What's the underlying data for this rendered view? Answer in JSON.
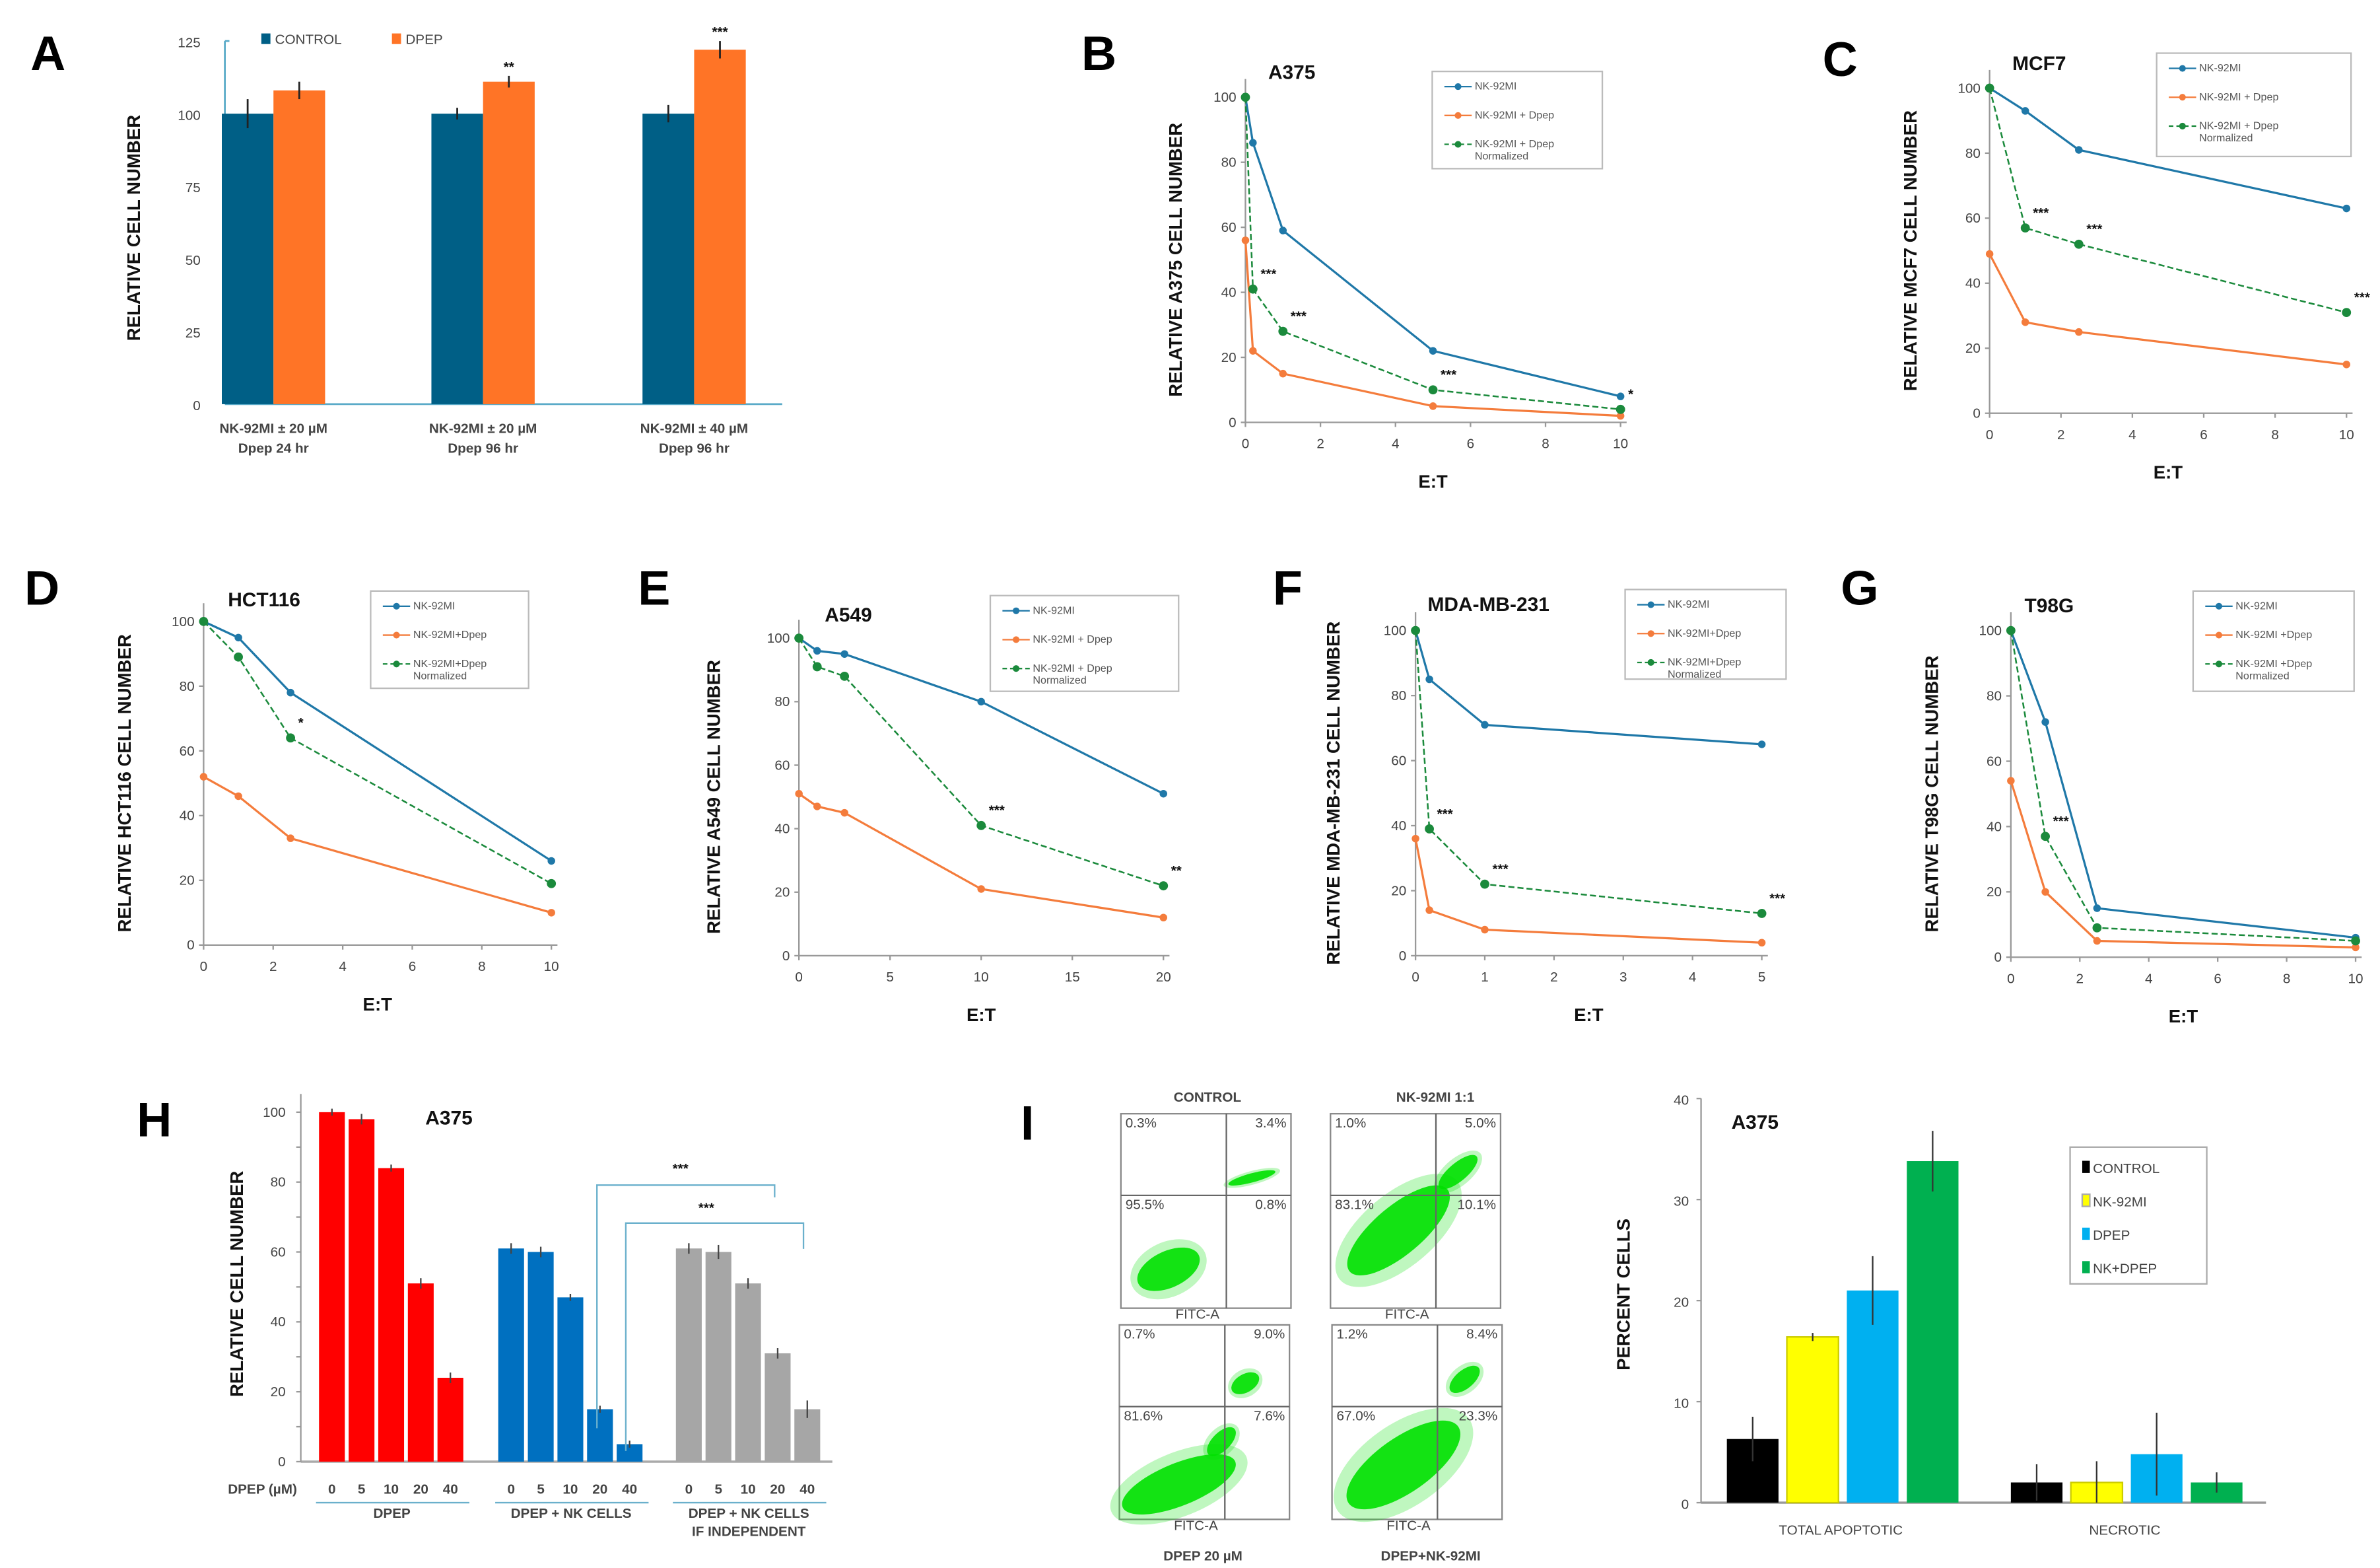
{
  "colors": {
    "nk": "#1f78a8",
    "dpep": "#f47c3c",
    "norm": "#1b8a3c",
    "control_A": "#005f86",
    "dpep_A": "#ff7426",
    "h_red": "#ff0000",
    "h_blue": "#0070c0",
    "h_gray": "#a6a6a6",
    "i_black": "#000000",
    "i_yellow": "#ffff00",
    "i_cyan": "#00b0f0",
    "i_green": "#00b050",
    "flow_green": "#00e000"
  },
  "chart_data": [
    {
      "panel": "A",
      "type": "bar",
      "categories": [
        [
          "NK-92MI ± 20 µM",
          "Dpep 24 hr"
        ],
        [
          "NK-92MI ± 20 µM",
          "Dpep 96 hr"
        ],
        [
          "NK-92MI ± 40 µM",
          "Dpep 96 hr"
        ]
      ],
      "series": [
        {
          "name": "CONTROL",
          "values": [
            100,
            100,
            100
          ],
          "errors": [
            5,
            2,
            3
          ]
        },
        {
          "name": "DPEP",
          "values": [
            108,
            111,
            122
          ],
          "errors": [
            3,
            2,
            3
          ]
        }
      ],
      "stars": [
        "",
        "**",
        "***"
      ],
      "ylabel": "RELATIVE CELL NUMBER",
      "ylim": [
        0,
        125
      ],
      "yticks": [
        0,
        25,
        50,
        75,
        100,
        125
      ],
      "legend": "top"
    },
    {
      "panel": "B",
      "type": "line",
      "title": "A375",
      "ylabel": "RELATIVE A375 CELL NUMBER",
      "xlabel": "E:T",
      "xlim": [
        0,
        10
      ],
      "ylim": [
        0,
        100
      ],
      "xticks": [
        0,
        2,
        4,
        6,
        8,
        10
      ],
      "yticks": [
        0,
        20,
        40,
        60,
        80,
        100
      ],
      "x": [
        0,
        0.2,
        1,
        5,
        10
      ],
      "series": [
        {
          "values": [
            100,
            86,
            59,
            22,
            8
          ]
        },
        {
          "values": [
            56,
            22,
            15,
            5,
            2
          ]
        },
        {
          "values": [
            100,
            41,
            28,
            10,
            4
          ]
        }
      ],
      "stars": [
        "",
        "***",
        "***",
        "***",
        "*"
      ],
      "legend": [
        [
          "NK-92MI"
        ],
        [
          "NK-92MI + Dpep"
        ],
        [
          "NK-92MI + Dpep",
          "Normalized"
        ]
      ]
    },
    {
      "panel": "C",
      "type": "line",
      "title": "MCF7",
      "ylabel": "RELATIVE MCF7 CELL NUMBER",
      "xlabel": "E:T",
      "xlim": [
        0,
        10
      ],
      "ylim": [
        0,
        100
      ],
      "xticks": [
        0,
        2,
        4,
        6,
        8,
        10
      ],
      "yticks": [
        0,
        20,
        40,
        60,
        80,
        100
      ],
      "x": [
        0,
        1,
        2.5,
        10
      ],
      "series": [
        {
          "values": [
            100,
            93,
            81,
            63
          ]
        },
        {
          "values": [
            49,
            28,
            25,
            15
          ]
        },
        {
          "values": [
            100,
            57,
            52,
            31
          ]
        }
      ],
      "stars": [
        "",
        "***",
        "***",
        "***"
      ],
      "legend": [
        [
          "NK-92MI"
        ],
        [
          "NK-92MI + Dpep"
        ],
        [
          "NK-92MI + Dpep",
          "Normalized"
        ]
      ]
    },
    {
      "panel": "D",
      "type": "line",
      "title": "HCT116",
      "ylabel": "RELATIVE HCT116 CELL NUMBER",
      "xlabel": "E:T",
      "xlim": [
        0,
        10
      ],
      "ylim": [
        0,
        100
      ],
      "xticks": [
        0,
        2,
        4,
        6,
        8,
        10
      ],
      "yticks": [
        0,
        20,
        40,
        60,
        80,
        100
      ],
      "x": [
        0,
        1,
        2.5,
        10
      ],
      "series": [
        {
          "values": [
            100,
            95,
            78,
            26
          ]
        },
        {
          "values": [
            52,
            46,
            33,
            10
          ]
        },
        {
          "values": [
            100,
            89,
            64,
            19
          ]
        }
      ],
      "stars": [
        "",
        "",
        "*",
        ""
      ],
      "legend": [
        [
          "NK-92MI"
        ],
        [
          "NK-92MI+Dpep"
        ],
        [
          "NK-92MI+Dpep",
          "Normalized"
        ]
      ]
    },
    {
      "panel": "E",
      "type": "line",
      "title": "A549",
      "ylabel": "RELATIVE A549 CELL NUMBER",
      "xlabel": "E:T",
      "xlim": [
        0,
        20
      ],
      "ylim": [
        0,
        100
      ],
      "xticks": [
        0,
        5,
        10,
        15,
        20
      ],
      "yticks": [
        0,
        20,
        40,
        60,
        80,
        100
      ],
      "x": [
        0,
        1,
        2.5,
        10,
        20
      ],
      "series": [
        {
          "values": [
            100,
            96,
            95,
            80,
            51
          ]
        },
        {
          "values": [
            51,
            47,
            45,
            21,
            12
          ]
        },
        {
          "values": [
            100,
            91,
            88,
            41,
            22
          ]
        }
      ],
      "stars": [
        "",
        "",
        "",
        "***",
        "**"
      ],
      "legend": [
        [
          "NK-92MI"
        ],
        [
          "NK-92MI + Dpep"
        ],
        [
          "NK-92MI + Dpep",
          "Normalized"
        ]
      ]
    },
    {
      "panel": "F",
      "type": "line",
      "title": "MDA-MB-231",
      "ylabel": "RELATIVE MDA-MB-231 CELL NUMBER",
      "xlabel": "E:T",
      "xlim": [
        0,
        5
      ],
      "ylim": [
        0,
        100
      ],
      "xticks": [
        0,
        1,
        2,
        3,
        4,
        5
      ],
      "yticks": [
        0,
        20,
        40,
        60,
        80,
        100
      ],
      "x": [
        0,
        0.2,
        1,
        5
      ],
      "series": [
        {
          "values": [
            100,
            85,
            71,
            65
          ]
        },
        {
          "values": [
            36,
            14,
            8,
            4
          ]
        },
        {
          "values": [
            100,
            39,
            22,
            13
          ]
        }
      ],
      "stars": [
        "",
        "***",
        "***",
        "***"
      ],
      "legend": [
        [
          "NK-92MI"
        ],
        [
          "NK-92MI+Dpep"
        ],
        [
          "NK-92MI+Dpep",
          "Normalized"
        ]
      ]
    },
    {
      "panel": "G",
      "type": "line",
      "title": "T98G",
      "ylabel": "RELATIVE T98G CELL NUMBER",
      "xlabel": "E:T",
      "xlim": [
        0,
        10
      ],
      "ylim": [
        0,
        100
      ],
      "xticks": [
        0,
        2,
        4,
        6,
        8,
        10
      ],
      "yticks": [
        0,
        20,
        40,
        60,
        80,
        100
      ],
      "x": [
        0,
        1,
        2.5,
        10
      ],
      "series": [
        {
          "values": [
            100,
            72,
            15,
            6
          ]
        },
        {
          "values": [
            54,
            20,
            5,
            3
          ]
        },
        {
          "values": [
            100,
            37,
            9,
            5
          ]
        }
      ],
      "stars": [
        "",
        "***",
        "",
        ""
      ],
      "legend": [
        [
          "NK-92MI"
        ],
        [
          "NK-92MI +Dpep"
        ],
        [
          "NK-92MI +Dpep",
          "Normalized"
        ]
      ]
    },
    {
      "panel": "H",
      "type": "bar",
      "title": "A375",
      "ylabel": "RELATIVE CELL NUMBER",
      "ylim": [
        0,
        100
      ],
      "yticks": [
        0,
        20,
        40,
        60,
        80,
        100
      ],
      "dose_label": "DPEP (µM)",
      "doses": [
        "0",
        "5",
        "10",
        "20",
        "40"
      ],
      "groups": [
        {
          "label": [
            "DPEP"
          ],
          "values": [
            100,
            98,
            84,
            51,
            24
          ],
          "errors": [
            1,
            1.5,
            1,
            1.5,
            1.5
          ]
        },
        {
          "label": [
            "DPEP + NK CELLS"
          ],
          "values": [
            61,
            60,
            47,
            15,
            5
          ],
          "errors": [
            1.5,
            1.5,
            1,
            1,
            1
          ]
        },
        {
          "label": [
            "DPEP + NK CELLS",
            "IF INDEPENDENT"
          ],
          "values": [
            61,
            60,
            51,
            31,
            15
          ],
          "errors": [
            1.5,
            2,
            1.5,
            1.5,
            2.5
          ]
        }
      ],
      "brackets": [
        "***",
        "***"
      ]
    },
    {
      "panel": "I",
      "type": "bar",
      "title": "A375",
      "ylabel": "PERCENT CELLS",
      "ylim": [
        0,
        40
      ],
      "yticks": [
        0,
        10,
        20,
        30,
        40
      ],
      "categories": [
        "TOTAL APOPTOTIC",
        "NECROTIC"
      ],
      "series": [
        {
          "name": "CONTROL",
          "values": [
            6.3,
            2.0
          ],
          "errors": [
            2.2,
            1.8
          ]
        },
        {
          "name": "NK-92MI",
          "values": [
            16.4,
            2.0
          ],
          "errors": [
            0.4,
            2.1
          ]
        },
        {
          "name": "DPEP",
          "values": [
            21.0,
            4.8
          ],
          "errors": [
            3.4,
            4.1
          ]
        },
        {
          "name": "NK+DPEP",
          "values": [
            33.8,
            2.0
          ],
          "errors": [
            3.0,
            1.0
          ]
        }
      ],
      "legend": "right"
    }
  ],
  "flow": {
    "x_axis_label": "FITC-A",
    "panels": [
      {
        "title": "CONTROL",
        "UL": "0.3%",
        "UR": "3.4%",
        "LL": "95.5%",
        "LR": "0.8%"
      },
      {
        "title": "NK-92MI  1:1",
        "UL": "1.0%",
        "UR": "5.0%",
        "LL": "83.1%",
        "LR": "10.1%"
      },
      {
        "title": "DPEP 20 µM",
        "UL": "0.7%",
        "UR": "9.0%",
        "LL": "81.6%",
        "LR": "7.6%"
      },
      {
        "title": "DPEP+NK-92MI",
        "UL": "1.2%",
        "UR": "8.4%",
        "LL": "67.0%",
        "LR": "23.3%"
      }
    ]
  },
  "panel_letters": [
    "A",
    "B",
    "C",
    "D",
    "E",
    "F",
    "G",
    "H",
    "I"
  ]
}
